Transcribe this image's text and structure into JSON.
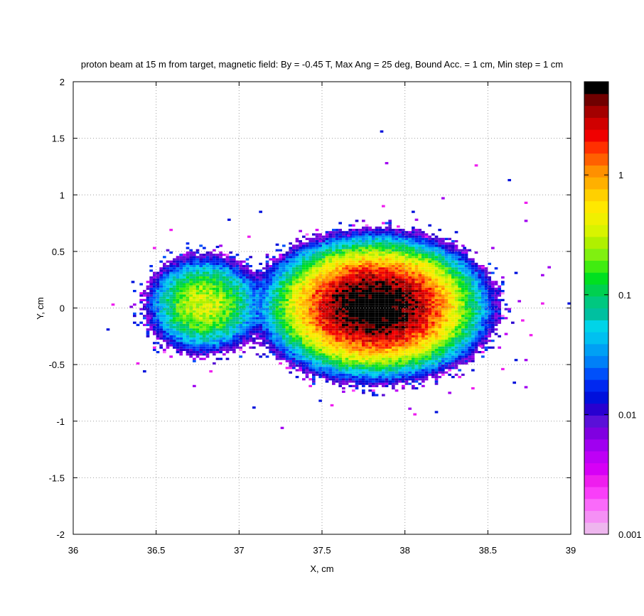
{
  "chart_data": {
    "type": "heatmap",
    "title": "proton beam at 15 m from target, magnetic field: By = -0.45 T, Max Ang = 25 deg, Bound Acc. = 1 cm, Min step = 1 cm",
    "xlabel": "X, cm",
    "ylabel": "Y, cm",
    "xlim": [
      36,
      39
    ],
    "ylim": [
      -2,
      2
    ],
    "x_ticks": [
      36,
      36.5,
      37,
      37.5,
      38,
      38.5,
      39
    ],
    "x_tick_labels": [
      "36",
      "36.5",
      "37",
      "37.5",
      "38",
      "38.5",
      "39"
    ],
    "y_ticks": [
      2,
      1.5,
      1,
      0.5,
      0,
      -0.5,
      -1,
      -1.5,
      -2
    ],
    "y_tick_labels": [
      "2",
      "1.5",
      "1",
      "0.5",
      "0",
      "-0.5",
      "-1",
      "-1.5",
      "-2"
    ],
    "grid": true,
    "colorbar": {
      "scale": "log",
      "range": [
        0.001,
        6
      ],
      "ticks": [
        1,
        0.1,
        0.01,
        0.001
      ],
      "tick_labels": [
        "1",
        "0.1",
        "0.01",
        "0.001"
      ],
      "colors": [
        "#eeb6ee",
        "#f590f5",
        "#fa6afa",
        "#f93ef9",
        "#ee1eee",
        "#d600f6",
        "#be00f6",
        "#a000f0",
        "#8000e0",
        "#5a10d8",
        "#2800d0",
        "#0010dc",
        "#0028f0",
        "#0050fa",
        "#0080f8",
        "#00a0f4",
        "#00c0f0",
        "#00d4e8",
        "#00c0a0",
        "#00c880",
        "#00d050",
        "#00e020",
        "#40ec10",
        "#80f010",
        "#b0f000",
        "#d8f400",
        "#f0f000",
        "#ffe800",
        "#ffd000",
        "#ffb000",
        "#ff9000",
        "#ff6000",
        "#ff3000",
        "#f00000",
        "#d00000",
        "#a40000",
        "#700000",
        "#000000"
      ]
    },
    "blobs": [
      {
        "name": "left",
        "x": 36.78,
        "y": 0.02,
        "sx": 0.13,
        "sy": 0.16,
        "peak": 0.35
      },
      {
        "name": "right",
        "x": 37.81,
        "y": 0.0,
        "sx": 0.2,
        "sy": 0.185,
        "peak": 8
      }
    ],
    "scatter_points": [
      [
        37.85,
        1.55
      ],
      [
        37.88,
        1.27
      ],
      [
        38.42,
        1.25
      ],
      [
        38.62,
        1.12
      ],
      [
        38.22,
        0.96
      ],
      [
        38.72,
        0.92
      ],
      [
        37.12,
        0.84
      ],
      [
        38.72,
        0.76
      ],
      [
        36.58,
        0.68
      ],
      [
        36.93,
        0.77
      ],
      [
        38.06,
        0.77
      ],
      [
        37.86,
        0.89
      ],
      [
        38.04,
        0.84
      ],
      [
        37.36,
        0.67
      ],
      [
        36.48,
        0.52
      ],
      [
        36.86,
        0.53
      ],
      [
        38.86,
        0.35
      ],
      [
        38.46,
        0.35
      ],
      [
        38.66,
        0.3
      ],
      [
        38.82,
        0.28
      ],
      [
        38.82,
        0.03
      ],
      [
        38.98,
        0.03
      ],
      [
        38.62,
        -0.02
      ],
      [
        36.23,
        0.02
      ],
      [
        36.2,
        -0.2
      ],
      [
        36.45,
        -0.1
      ],
      [
        36.38,
        -0.5
      ],
      [
        36.42,
        -0.57
      ],
      [
        36.72,
        -0.7
      ],
      [
        36.82,
        -0.57
      ],
      [
        37.08,
        -0.89
      ],
      [
        37.25,
        -1.07
      ],
      [
        37.42,
        -0.7
      ],
      [
        37.48,
        -0.83
      ],
      [
        37.62,
        -0.75
      ],
      [
        37.55,
        -0.87
      ],
      [
        37.88,
        -0.7
      ],
      [
        38.02,
        -0.9
      ],
      [
        38.05,
        -0.95
      ],
      [
        38.18,
        -0.93
      ],
      [
        38.26,
        -0.76
      ],
      [
        38.4,
        -0.72
      ],
      [
        38.65,
        -0.67
      ],
      [
        38.72,
        -0.71
      ],
      [
        38.58,
        -0.55
      ],
      [
        38.66,
        -0.47
      ],
      [
        38.72,
        -0.47
      ],
      [
        38.45,
        -0.35
      ],
      [
        38.48,
        -0.2
      ],
      [
        38.6,
        -0.1
      ],
      [
        38.7,
        -0.12
      ],
      [
        38.55,
        0.12
      ],
      [
        38.68,
        0.05
      ],
      [
        38.75,
        -0.25
      ],
      [
        36.35,
        0.22
      ],
      [
        36.52,
        0.3
      ],
      [
        37.05,
        0.62
      ],
      [
        37.22,
        0.55
      ],
      [
        37.65,
        0.63
      ],
      [
        38.12,
        0.62
      ],
      [
        38.35,
        0.52
      ],
      [
        38.52,
        0.52
      ],
      [
        37.95,
        0.71
      ],
      [
        38.3,
        0.66
      ],
      [
        37.48,
        0.58
      ]
    ]
  }
}
